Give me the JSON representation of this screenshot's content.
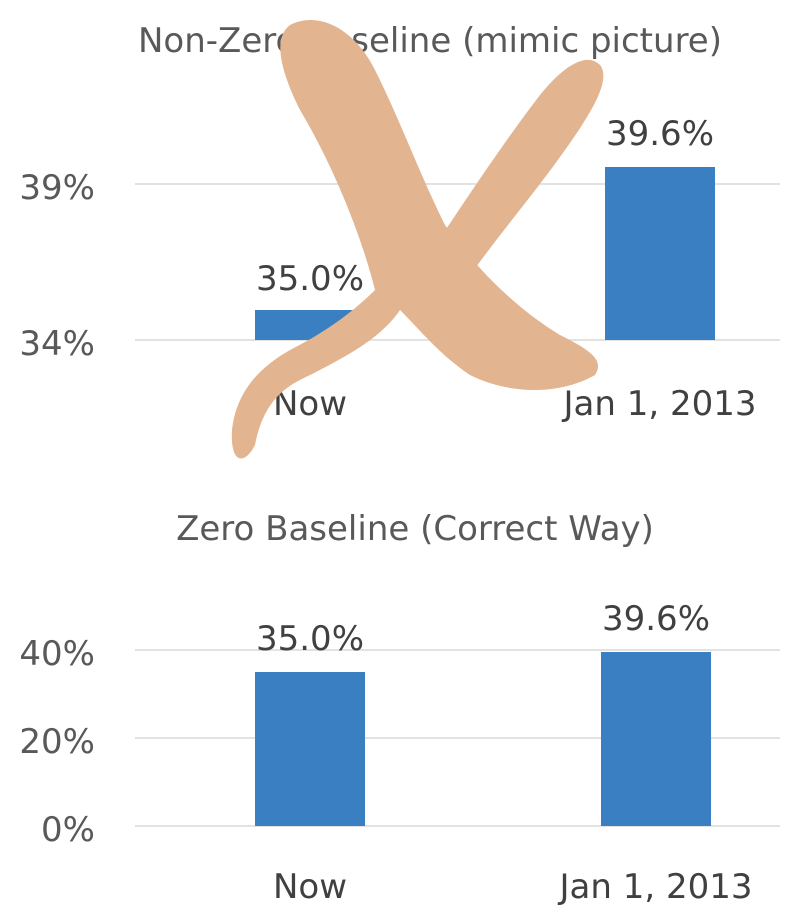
{
  "chart_data": [
    {
      "type": "bar",
      "title": "Non-Zero Baseline (mimic picture)",
      "categories": [
        "Now",
        "Jan 1, 2013"
      ],
      "values": [
        35.0,
        39.6
      ],
      "data_labels": [
        "35.0%",
        "39.6%"
      ],
      "ylim": [
        34,
        39
      ],
      "yticks": [
        "34%",
        "39%"
      ],
      "bar_color": "#3a7fc1",
      "grid": true,
      "overlay": "large tan X mark crossing out chart"
    },
    {
      "type": "bar",
      "title": "Zero Baseline (Correct Way)",
      "categories": [
        "Now",
        "Jan 1, 2013"
      ],
      "values": [
        35.0,
        39.6
      ],
      "data_labels": [
        "35.0%",
        "39.6%"
      ],
      "ylim": [
        0,
        40
      ],
      "yticks": [
        "0%",
        "20%",
        "40%"
      ],
      "bar_color": "#3a7fc1",
      "grid": true
    }
  ]
}
